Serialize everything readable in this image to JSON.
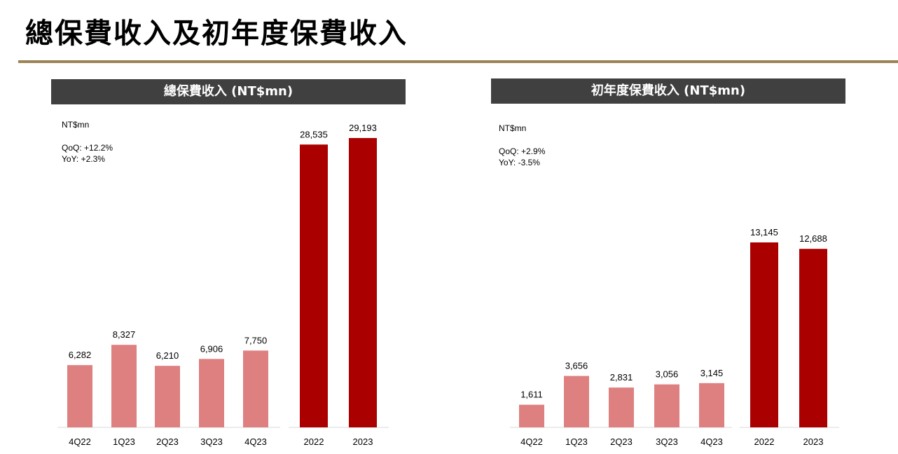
{
  "page": {
    "title": "總保費收入及初年度保費收入"
  },
  "colors": {
    "accent_rule": "#9c8454",
    "header_bg": "#404040",
    "quarter_bar": "#de8080",
    "year_bar": "#aa0000"
  },
  "chart_data": [
    {
      "type": "bar",
      "title": "總保費收入 (NT$mn)",
      "unit": "NT$mn",
      "qoq": "QoQ:  +12.2%",
      "yoy": "YoY:  +2.3%",
      "categories": [
        "4Q22",
        "1Q23",
        "2Q23",
        "3Q23",
        "4Q23",
        "2022",
        "2023"
      ],
      "values": [
        6282,
        8327,
        6210,
        6906,
        7750,
        28535,
        29193
      ],
      "labels": [
        "6,282",
        "8,327",
        "6,210",
        "6,906",
        "7,750",
        "28,535",
        "29,193"
      ],
      "series_groups": [
        "quarter",
        "quarter",
        "quarter",
        "quarter",
        "quarter",
        "year",
        "year"
      ],
      "ylim": [
        0,
        30000
      ]
    },
    {
      "type": "bar",
      "title": "初年度保費收入 (NT$mn)",
      "unit": "NT$mn",
      "qoq": "QoQ:  +2.9%",
      "yoy": "YoY:   -3.5%",
      "categories": [
        "4Q22",
        "1Q23",
        "2Q23",
        "3Q23",
        "4Q23",
        "2022",
        "2023"
      ],
      "values": [
        1611,
        3656,
        2831,
        3056,
        3145,
        13145,
        12688
      ],
      "labels": [
        "1,611",
        "3,656",
        "2,831",
        "3,056",
        "3,145",
        "13,145",
        "12,688"
      ],
      "series_groups": [
        "quarter",
        "quarter",
        "quarter",
        "quarter",
        "quarter",
        "year",
        "year"
      ],
      "ylim": [
        0,
        16000
      ]
    }
  ]
}
